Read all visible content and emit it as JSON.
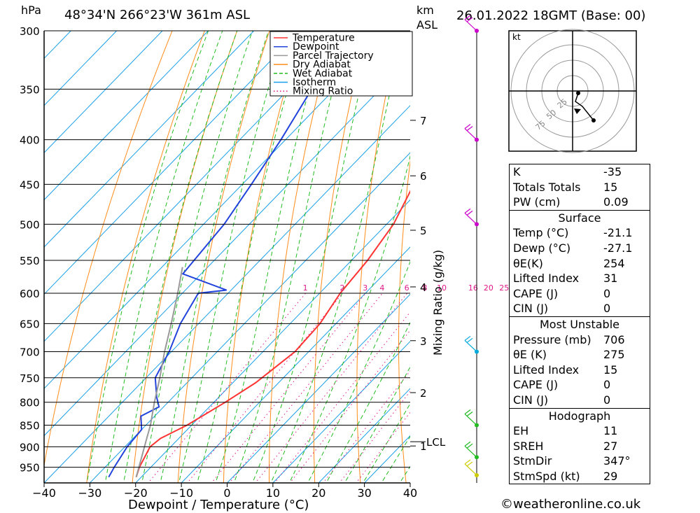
{
  "header": {
    "hpa_label": "hPa",
    "location": "48°34'N 266°23'W 361m ASL",
    "km_label": "km",
    "asl_label": "ASL",
    "datetime": "26.01.2022 18GMT (Base: 00)"
  },
  "colors": {
    "temperature": "#ff3333",
    "dewpoint": "#2244dd",
    "parcel": "#999999",
    "dry_adiabat": "#ff8c1a",
    "wet_adiabat": "#22bb22",
    "isotherm": "#1aa0e8",
    "mixing_ratio": "#e0198a"
  },
  "chart_data": {
    "type": "line",
    "title": "48°34'N 266°23'W 361m ASL",
    "xlabel": "Dewpoint / Temperature (°C)",
    "ylabel": "hPa",
    "xlim": [
      -40,
      40
    ],
    "ylim": [
      990,
      300
    ],
    "y_scale": "log",
    "x_ticks": [
      "−40",
      "−30",
      "−20",
      "−10",
      "0",
      "10",
      "20",
      "30",
      "40"
    ],
    "pressure_levels": [
      300,
      350,
      400,
      450,
      500,
      550,
      600,
      650,
      700,
      750,
      800,
      850,
      900,
      950
    ],
    "km_ticks": [
      {
        "km": "1",
        "p": 898
      },
      {
        "km": "2",
        "p": 780
      },
      {
        "km": "3",
        "p": 680
      },
      {
        "km": "4",
        "p": 590
      },
      {
        "km": "5",
        "p": 508
      },
      {
        "km": "6",
        "p": 440
      },
      {
        "km": "7",
        "p": 380
      }
    ],
    "lcl": {
      "label": "LCL",
      "p": 888
    },
    "mixing_ratio_axis_label": "Mixing Ratio (g/kg)",
    "mixing_ratio_labels": [
      "1",
      "2",
      "3",
      "4",
      "6",
      "8",
      "10",
      "16",
      "20",
      "25"
    ],
    "legend": [
      "Temperature",
      "Dewpoint",
      "Parcel Trajectory",
      "Dry Adiabat",
      "Wet Adiabat",
      "Isotherm",
      "Mixing Ratio"
    ],
    "legend_position": "top-right",
    "series": [
      {
        "name": "Temperature",
        "points": [
          [
            975,
            -21.1
          ],
          [
            950,
            -22.5
          ],
          [
            900,
            -24.5
          ],
          [
            880,
            -24.0
          ],
          [
            850,
            -21.0
          ],
          [
            800,
            -17.5
          ],
          [
            760,
            -15.0
          ],
          [
            700,
            -13.0
          ],
          [
            650,
            -13.5
          ],
          [
            600,
            -15.5
          ],
          [
            550,
            -16.5
          ],
          [
            500,
            -18.5
          ],
          [
            450,
            -22.5
          ],
          [
            400,
            -27.5
          ],
          [
            350,
            -34.0
          ],
          [
            310,
            -40.5
          ],
          [
            300,
            -42.0
          ]
        ]
      },
      {
        "name": "Dewpoint",
        "points": [
          [
            975,
            -27.1
          ],
          [
            950,
            -28.0
          ],
          [
            900,
            -29.5
          ],
          [
            860,
            -30.0
          ],
          [
            830,
            -33.0
          ],
          [
            810,
            -31.0
          ],
          [
            790,
            -33.5
          ],
          [
            750,
            -38.0
          ],
          [
            700,
            -40.5
          ],
          [
            650,
            -44.0
          ],
          [
            600,
            -46.5
          ],
          [
            595,
            -41.0
          ],
          [
            570,
            -54.0
          ],
          [
            500,
            -55.5
          ],
          [
            450,
            -58.0
          ],
          [
            400,
            -61.0
          ],
          [
            350,
            -65.0
          ],
          [
            320,
            -68.0
          ],
          [
            300,
            -68.0
          ]
        ]
      },
      {
        "name": "Parcel Trajectory",
        "points": [
          [
            975,
            -21.1
          ],
          [
            888,
            -26.5
          ],
          [
            850,
            -29.0
          ],
          [
            800,
            -33.0
          ],
          [
            750,
            -37.0
          ],
          [
            700,
            -41.5
          ],
          [
            650,
            -46.0
          ],
          [
            600,
            -51.0
          ],
          [
            560,
            -55.5
          ]
        ]
      }
    ],
    "wind_barbs": [
      {
        "p": 300,
        "color": "#cc00cc"
      },
      {
        "p": 400,
        "color": "#cc00cc"
      },
      {
        "p": 500,
        "color": "#cc00cc"
      },
      {
        "p": 700,
        "color": "#00aadd"
      },
      {
        "p": 850,
        "color": "#22bb22"
      },
      {
        "p": 925,
        "color": "#22bb22"
      },
      {
        "p": 970,
        "color": "#cccc00"
      }
    ]
  },
  "hodograph": {
    "unit": "kt",
    "rings": [
      "25",
      "50",
      "75"
    ]
  },
  "indices": {
    "k": {
      "label": "K",
      "value": "-35"
    },
    "totals": {
      "label": "Totals Totals",
      "value": "15"
    },
    "pw": {
      "label": "PW (cm)",
      "value": "0.09"
    }
  },
  "surface": {
    "title": "Surface",
    "rows": [
      {
        "label": "Temp (°C)",
        "value": "-21.1"
      },
      {
        "label": "Dewp (°C)",
        "value": "-27.1"
      },
      {
        "label": "θE(K)",
        "value": "254"
      },
      {
        "label": "Lifted Index",
        "value": "31"
      },
      {
        "label": "CAPE (J)",
        "value": "0"
      },
      {
        "label": "CIN (J)",
        "value": "0"
      }
    ]
  },
  "most_unstable": {
    "title": "Most Unstable",
    "rows": [
      {
        "label": "Pressure (mb)",
        "value": "706"
      },
      {
        "label": "θE (K)",
        "value": "275"
      },
      {
        "label": "Lifted Index",
        "value": "15"
      },
      {
        "label": "CAPE (J)",
        "value": "0"
      },
      {
        "label": "CIN (J)",
        "value": "0"
      }
    ]
  },
  "hodo_table": {
    "title": "Hodograph",
    "rows": [
      {
        "label": "EH",
        "value": "11"
      },
      {
        "label": "SREH",
        "value": "27"
      },
      {
        "label": "StmDir",
        "value": "347°"
      },
      {
        "label": "StmSpd (kt)",
        "value": "29"
      }
    ]
  },
  "copyright": "©weatheronline.co.uk"
}
